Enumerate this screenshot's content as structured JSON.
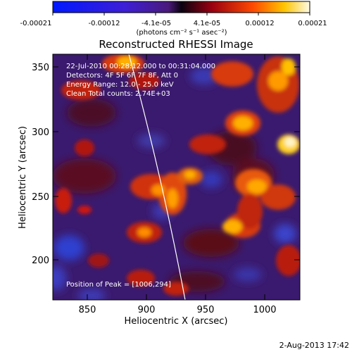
{
  "colorbar": {
    "tick_labels": [
      "-0.00021",
      "-0.00012",
      "-4.1e-05",
      "4.1e-05",
      "0.00012",
      "0.00021"
    ],
    "units_label": "(photons cm⁻² s⁻¹ asec⁻²)"
  },
  "plot": {
    "title": "Reconstructed RHESSI Image",
    "xlabel": "Heliocentric X (arcsec)",
    "ylabel": "Heliocentric Y (arcsec)",
    "x_ticks": [
      "850",
      "900",
      "950",
      "1000"
    ],
    "y_ticks": [
      "200",
      "250",
      "300",
      "350"
    ],
    "info_lines": [
      "22-Jul-2010 00:28:12.000 to 00:31:04.000",
      "Detectors: 4F 5F 6F 7F 8F, Att 0",
      "Energy Range: 12.0 - 25.0 keV",
      "Clean     Total counts: 2.74E+03"
    ],
    "peak_label": "Position of Peak = [1006,294]"
  },
  "footer": {
    "timestamp": "2-Aug-2013 17:42"
  }
}
